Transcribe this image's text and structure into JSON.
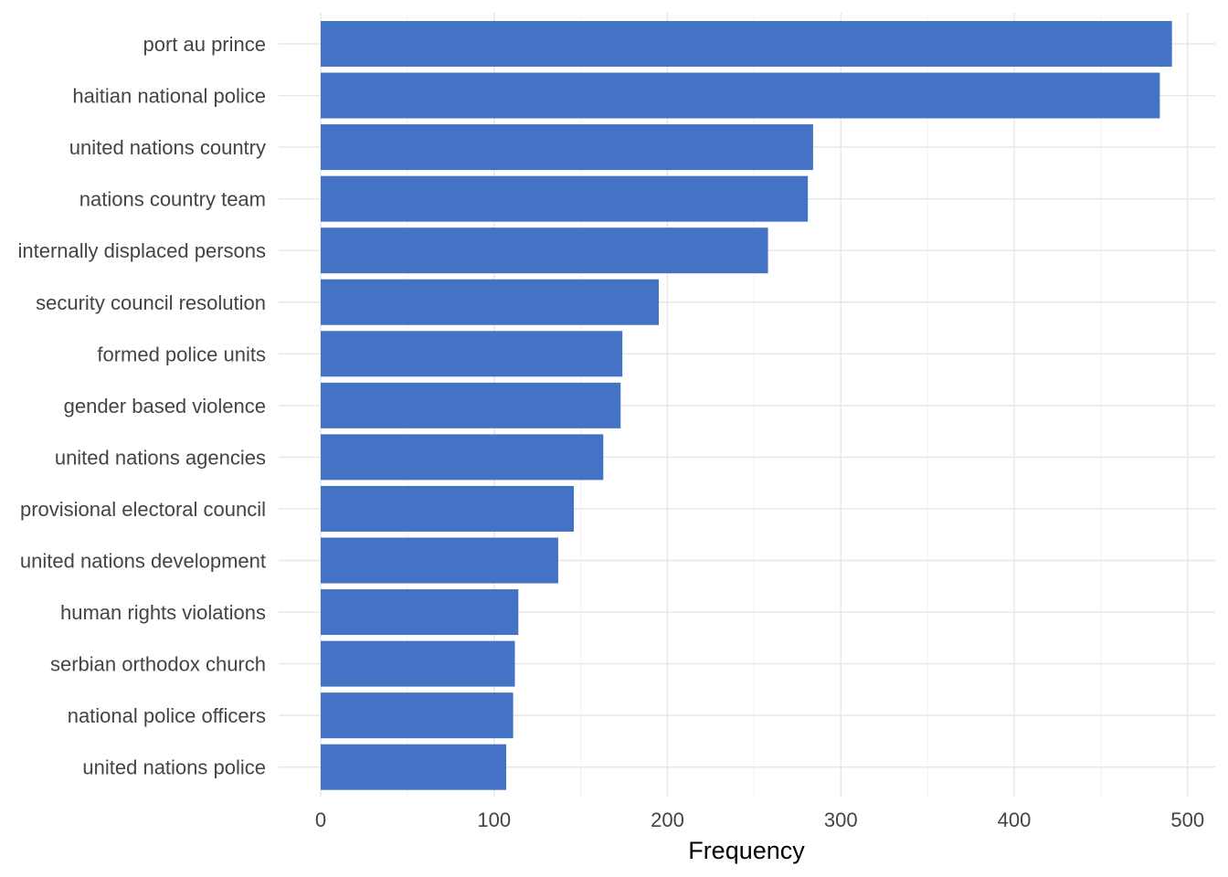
{
  "chart_data": {
    "type": "bar",
    "orientation": "horizontal",
    "categories": [
      "port au prince",
      "haitian national police",
      "united nations country",
      "nations country team",
      "internally displaced persons",
      "security council resolution",
      "formed police units",
      "gender based violence",
      "united nations agencies",
      "provisional electoral council",
      "united nations development",
      "human rights violations",
      "serbian orthodox church",
      "national police officers",
      "united nations police"
    ],
    "values": [
      491,
      484,
      284,
      281,
      258,
      195,
      174,
      173,
      163,
      146,
      137,
      114,
      112,
      111,
      107
    ],
    "xlabel": "Frequency",
    "ylabel": "",
    "xlim": [
      0,
      515
    ],
    "x_ticks": [
      0,
      100,
      200,
      300,
      400,
      500
    ],
    "grid": true,
    "legend": "none",
    "bar_color": "#4472C4"
  }
}
